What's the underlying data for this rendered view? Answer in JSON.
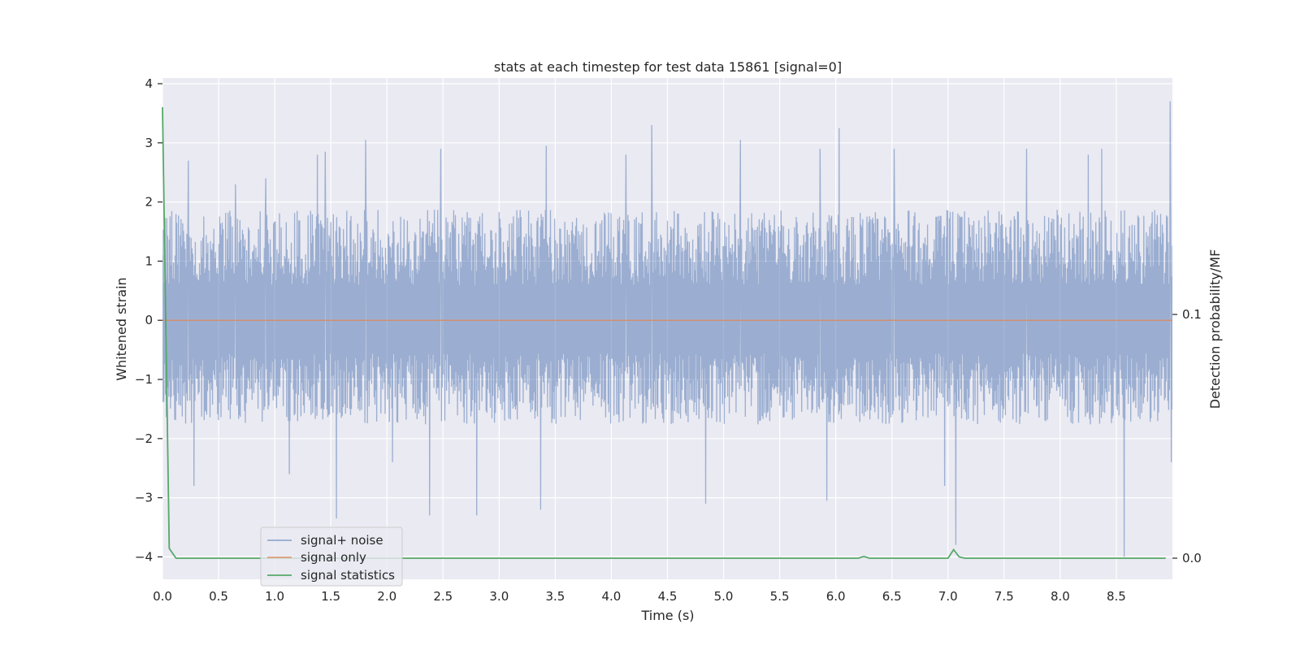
{
  "chart_data": {
    "type": "line",
    "title": "stats at each timestep for test data 15861 [signal=0]",
    "xlabel": "Time (s)",
    "ylabel": "Whitened strain",
    "y2label": "Detection probability/MF",
    "xlim": [
      0.0,
      9.0
    ],
    "ylim": [
      -4.35,
      4.1
    ],
    "y2_ticks": [
      {
        "value": 0.0,
        "label": "0.0"
      },
      {
        "value": 0.1,
        "label": "0.1"
      }
    ],
    "xticks": [
      0.0,
      0.5,
      1.0,
      1.5,
      2.0,
      2.5,
      3.0,
      3.5,
      4.0,
      4.5,
      5.0,
      5.5,
      6.0,
      6.5,
      7.0,
      7.5,
      8.0,
      8.5
    ],
    "xtick_labels": [
      "0.0",
      "0.5",
      "1.0",
      "1.5",
      "2.0",
      "2.5",
      "3.0",
      "3.5",
      "4.0",
      "4.5",
      "5.0",
      "5.5",
      "6.0",
      "6.5",
      "7.0",
      "7.5",
      "8.0",
      "8.5"
    ],
    "yticks": [
      -4,
      -3,
      -2,
      -1,
      0,
      1,
      2,
      3,
      4
    ],
    "ytick_labels": [
      "−4",
      "−3",
      "−2",
      "−1",
      "0",
      "1",
      "2",
      "3",
      "4"
    ],
    "grid": true,
    "legend_location": "lower-left",
    "series": [
      {
        "name": "signal+ noise",
        "color": "#4c72b0",
        "axis": "left",
        "noise_profile": {
          "typical_upper": 1.7,
          "typical_lower": -1.6
        },
        "peaks": [
          {
            "x": 0.23,
            "y": 2.7
          },
          {
            "x": 0.28,
            "y": -2.8
          },
          {
            "x": 0.65,
            "y": 2.3
          },
          {
            "x": 0.92,
            "y": 2.4
          },
          {
            "x": 1.13,
            "y": -2.6
          },
          {
            "x": 1.38,
            "y": 2.8
          },
          {
            "x": 1.45,
            "y": 2.85
          },
          {
            "x": 1.55,
            "y": -3.35
          },
          {
            "x": 1.81,
            "y": 3.05
          },
          {
            "x": 2.05,
            "y": -2.4
          },
          {
            "x": 2.38,
            "y": -3.3
          },
          {
            "x": 2.48,
            "y": 2.9
          },
          {
            "x": 2.8,
            "y": -3.3
          },
          {
            "x": 3.37,
            "y": -3.2
          },
          {
            "x": 3.42,
            "y": 2.95
          },
          {
            "x": 4.13,
            "y": 2.8
          },
          {
            "x": 4.36,
            "y": 3.3
          },
          {
            "x": 4.84,
            "y": -3.1
          },
          {
            "x": 5.15,
            "y": 3.05
          },
          {
            "x": 5.86,
            "y": 2.9
          },
          {
            "x": 5.92,
            "y": -3.05
          },
          {
            "x": 6.03,
            "y": 3.25
          },
          {
            "x": 6.52,
            "y": 2.9
          },
          {
            "x": 6.97,
            "y": -2.8
          },
          {
            "x": 7.07,
            "y": -3.8
          },
          {
            "x": 7.7,
            "y": 2.9
          },
          {
            "x": 8.25,
            "y": 2.8
          },
          {
            "x": 8.37,
            "y": 2.9
          },
          {
            "x": 8.57,
            "y": -4.0
          },
          {
            "x": 8.98,
            "y": 3.7
          },
          {
            "x": 8.99,
            "y": -2.4
          }
        ]
      },
      {
        "name": "signal only",
        "color": "#dd8452",
        "axis": "left",
        "constant": 0.0
      },
      {
        "name": "signal statistics",
        "color": "#55a868",
        "axis": "right",
        "points": [
          [
            0.0,
            0.185
          ],
          [
            0.06,
            0.004
          ],
          [
            0.12,
            0.0
          ],
          [
            6.2,
            0.0
          ],
          [
            6.25,
            0.0007
          ],
          [
            6.3,
            0.0
          ],
          [
            7.0,
            0.0
          ],
          [
            7.05,
            0.0035
          ],
          [
            7.1,
            0.0005
          ],
          [
            7.15,
            0.0
          ],
          [
            8.94,
            0.0
          ]
        ]
      }
    ]
  }
}
